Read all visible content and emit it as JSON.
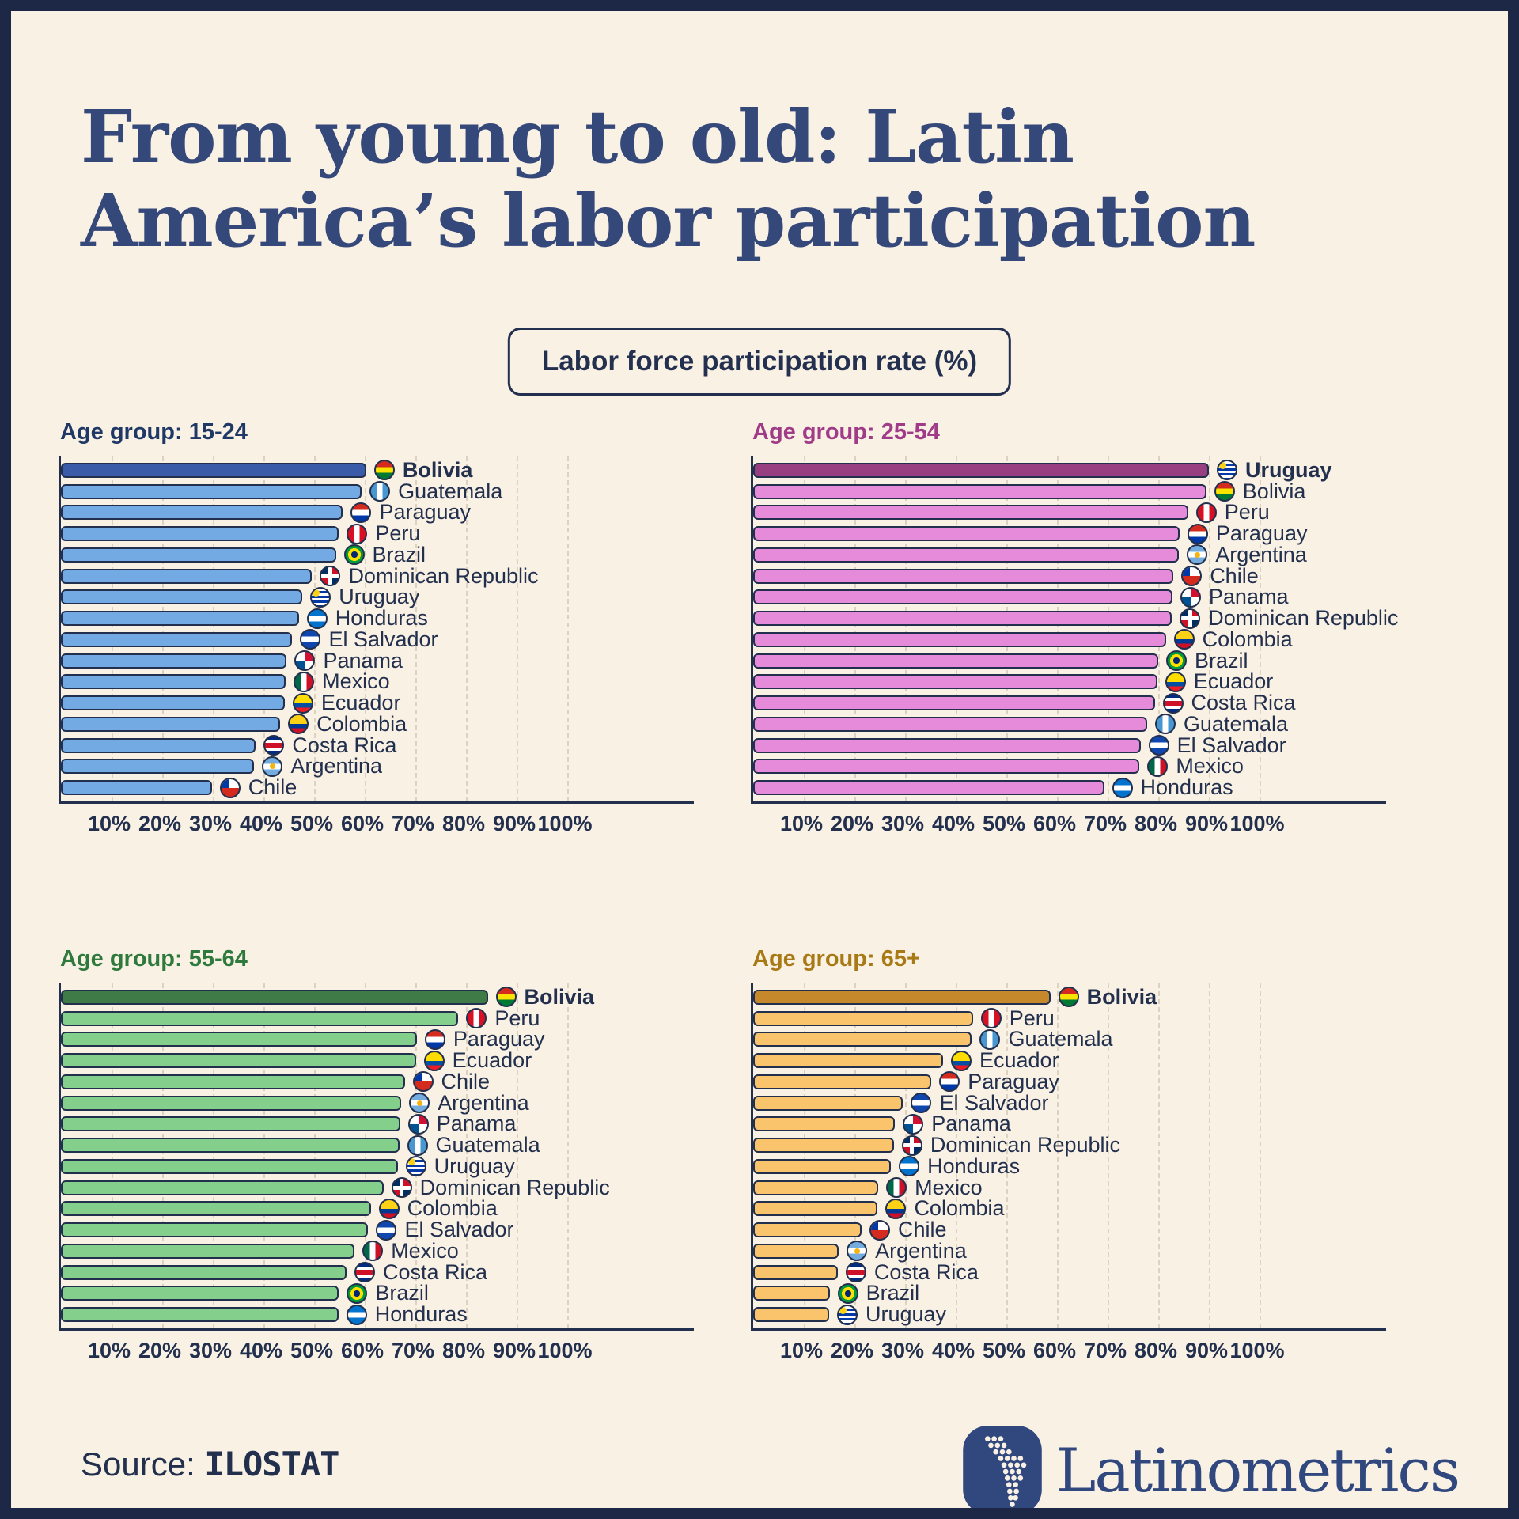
{
  "title": "From young to old: Latin America’s labor participation",
  "badge": "Labor force participation rate (%)",
  "source": {
    "label": "Source:",
    "name": "ILOSTAT"
  },
  "brand": "Latinometrics",
  "colors": {
    "background": "#FAF1E5",
    "frame": "#1C2845",
    "ink": "#22304E",
    "title_text": "#35487A",
    "gridline": "#DDD2BF"
  },
  "axis": {
    "tick_labels": [
      "10%",
      "20%",
      "30%",
      "40%",
      "50%",
      "60%",
      "70%",
      "80%",
      "90%",
      "100%"
    ],
    "min": 0,
    "max": 100,
    "gridlines": "dashed"
  },
  "chart_data": [
    {
      "type": "bar",
      "orientation": "horizontal",
      "title": "Age group: 15-24",
      "title_color": "#1F3866",
      "bar_color": "#74AAE4",
      "highlight_color": "#3A5CA8",
      "xlim": [
        0,
        100
      ],
      "rows": [
        {
          "country": "Bolivia",
          "flag": "bolivia",
          "value": 60.3,
          "highlight": true
        },
        {
          "country": "Guatemala",
          "flag": "guatemala",
          "value": 59.4,
          "highlight": false
        },
        {
          "country": "Paraguay",
          "flag": "paraguay",
          "value": 55.7,
          "highlight": false
        },
        {
          "country": "Peru",
          "flag": "peru",
          "value": 54.9,
          "highlight": false
        },
        {
          "country": "Brazil",
          "flag": "brazil",
          "value": 54.3,
          "highlight": false
        },
        {
          "country": "Dominican Republic",
          "flag": "dominican-republic",
          "value": 49.6,
          "highlight": false
        },
        {
          "country": "Uruguay",
          "flag": "uruguay",
          "value": 47.7,
          "highlight": false
        },
        {
          "country": "Honduras",
          "flag": "honduras",
          "value": 47.0,
          "highlight": false
        },
        {
          "country": "El Salvador",
          "flag": "el-salvador",
          "value": 45.7,
          "highlight": false
        },
        {
          "country": "Panama",
          "flag": "panama",
          "value": 44.6,
          "highlight": false
        },
        {
          "country": "Mexico",
          "flag": "mexico",
          "value": 44.4,
          "highlight": false
        },
        {
          "country": "Ecuador",
          "flag": "ecuador",
          "value": 44.2,
          "highlight": false
        },
        {
          "country": "Colombia",
          "flag": "colombia",
          "value": 43.3,
          "highlight": false
        },
        {
          "country": "Costa Rica",
          "flag": "costa-rica",
          "value": 38.5,
          "highlight": false
        },
        {
          "country": "Argentina",
          "flag": "argentina",
          "value": 38.2,
          "highlight": false
        },
        {
          "country": "Chile",
          "flag": "chile",
          "value": 29.8,
          "highlight": false
        }
      ]
    },
    {
      "type": "bar",
      "orientation": "horizontal",
      "title": "Age group: 25-54",
      "title_color": "#A03C87",
      "bar_color": "#E58BD9",
      "highlight_color": "#983F81",
      "xlim": [
        0,
        100
      ],
      "rows": [
        {
          "country": "Uruguay",
          "flag": "uruguay",
          "value": 90.0,
          "highlight": true
        },
        {
          "country": "Bolivia",
          "flag": "bolivia",
          "value": 89.5,
          "highlight": false
        },
        {
          "country": "Peru",
          "flag": "peru",
          "value": 85.9,
          "highlight": false
        },
        {
          "country": "Paraguay",
          "flag": "paraguay",
          "value": 84.2,
          "highlight": false
        },
        {
          "country": "Argentina",
          "flag": "argentina",
          "value": 84.1,
          "highlight": false
        },
        {
          "country": "Chile",
          "flag": "chile",
          "value": 83.0,
          "highlight": false
        },
        {
          "country": "Panama",
          "flag": "panama",
          "value": 82.8,
          "highlight": false
        },
        {
          "country": "Dominican Republic",
          "flag": "dominican-republic",
          "value": 82.7,
          "highlight": false
        },
        {
          "country": "Colombia",
          "flag": "colombia",
          "value": 81.5,
          "highlight": false
        },
        {
          "country": "Brazil",
          "flag": "brazil",
          "value": 80.0,
          "highlight": false
        },
        {
          "country": "Ecuador",
          "flag": "ecuador",
          "value": 79.8,
          "highlight": false
        },
        {
          "country": "Costa Rica",
          "flag": "costa-rica",
          "value": 79.3,
          "highlight": false
        },
        {
          "country": "Guatemala",
          "flag": "guatemala",
          "value": 77.8,
          "highlight": false
        },
        {
          "country": "El Salvador",
          "flag": "el-salvador",
          "value": 76.5,
          "highlight": false
        },
        {
          "country": "Mexico",
          "flag": "mexico",
          "value": 76.3,
          "highlight": false
        },
        {
          "country": "Honduras",
          "flag": "honduras",
          "value": 69.3,
          "highlight": false
        }
      ]
    },
    {
      "type": "bar",
      "orientation": "horizontal",
      "title": "Age group: 55-64",
      "title_color": "#2E7A3C",
      "bar_color": "#85CF8D",
      "highlight_color": "#3E7B47",
      "xlim": [
        0,
        100
      ],
      "rows": [
        {
          "country": "Bolivia",
          "flag": "bolivia",
          "value": 84.3,
          "highlight": true
        },
        {
          "country": "Peru",
          "flag": "peru",
          "value": 78.5,
          "highlight": false
        },
        {
          "country": "Paraguay",
          "flag": "paraguay",
          "value": 70.3,
          "highlight": false
        },
        {
          "country": "Ecuador",
          "flag": "ecuador",
          "value": 70.1,
          "highlight": false
        },
        {
          "country": "Chile",
          "flag": "chile",
          "value": 67.9,
          "highlight": false
        },
        {
          "country": "Argentina",
          "flag": "argentina",
          "value": 67.2,
          "highlight": false
        },
        {
          "country": "Panama",
          "flag": "panama",
          "value": 67.0,
          "highlight": false
        },
        {
          "country": "Guatemala",
          "flag": "guatemala",
          "value": 66.8,
          "highlight": false
        },
        {
          "country": "Uruguay",
          "flag": "uruguay",
          "value": 66.5,
          "highlight": false
        },
        {
          "country": "Dominican Republic",
          "flag": "dominican-republic",
          "value": 63.7,
          "highlight": false
        },
        {
          "country": "Colombia",
          "flag": "colombia",
          "value": 61.2,
          "highlight": false
        },
        {
          "country": "El Salvador",
          "flag": "el-salvador",
          "value": 60.7,
          "highlight": false
        },
        {
          "country": "Mexico",
          "flag": "mexico",
          "value": 58.0,
          "highlight": false
        },
        {
          "country": "Costa Rica",
          "flag": "costa-rica",
          "value": 56.4,
          "highlight": false
        },
        {
          "country": "Brazil",
          "flag": "brazil",
          "value": 54.9,
          "highlight": false
        },
        {
          "country": "Honduras",
          "flag": "honduras",
          "value": 54.8,
          "highlight": false
        }
      ]
    },
    {
      "type": "bar",
      "orientation": "horizontal",
      "title": "Age group: 65+",
      "title_color": "#A87A15",
      "bar_color": "#F9C46C",
      "highlight_color": "#C5882B",
      "xlim": [
        0,
        100
      ],
      "rows": [
        {
          "country": "Bolivia",
          "flag": "bolivia",
          "value": 58.7,
          "highlight": true
        },
        {
          "country": "Peru",
          "flag": "peru",
          "value": 43.4,
          "highlight": false
        },
        {
          "country": "Guatemala",
          "flag": "guatemala",
          "value": 43.2,
          "highlight": false
        },
        {
          "country": "Ecuador",
          "flag": "ecuador",
          "value": 37.5,
          "highlight": false
        },
        {
          "country": "Paraguay",
          "flag": "paraguay",
          "value": 35.2,
          "highlight": false
        },
        {
          "country": "El Salvador",
          "flag": "el-salvador",
          "value": 29.6,
          "highlight": false
        },
        {
          "country": "Panama",
          "flag": "panama",
          "value": 28.0,
          "highlight": false
        },
        {
          "country": "Dominican Republic",
          "flag": "dominican-republic",
          "value": 27.8,
          "highlight": false
        },
        {
          "country": "Honduras",
          "flag": "honduras",
          "value": 27.2,
          "highlight": false
        },
        {
          "country": "Mexico",
          "flag": "mexico",
          "value": 24.7,
          "highlight": false
        },
        {
          "country": "Colombia",
          "flag": "colombia",
          "value": 24.6,
          "highlight": false
        },
        {
          "country": "Chile",
          "flag": "chile",
          "value": 21.4,
          "highlight": false
        },
        {
          "country": "Argentina",
          "flag": "argentina",
          "value": 16.9,
          "highlight": false
        },
        {
          "country": "Costa Rica",
          "flag": "costa-rica",
          "value": 16.7,
          "highlight": false
        },
        {
          "country": "Brazil",
          "flag": "brazil",
          "value": 15.1,
          "highlight": false
        },
        {
          "country": "Uruguay",
          "flag": "uruguay",
          "value": 15.0,
          "highlight": false
        }
      ]
    }
  ]
}
